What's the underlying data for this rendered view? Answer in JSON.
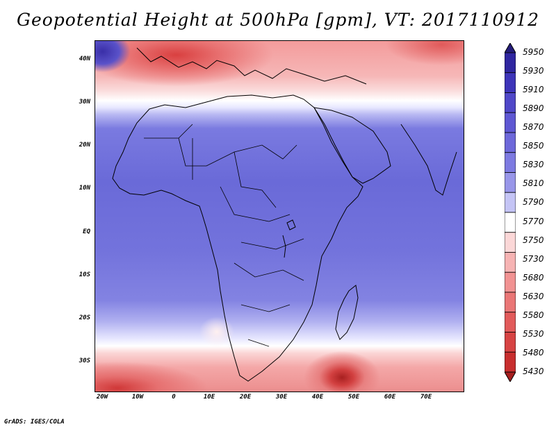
{
  "title": "Geopotential Height at 500hPa [gpm], VT: 2017110912",
  "y_ticks": [
    "40N",
    "30N",
    "20N",
    "10N",
    "EQ",
    "10S",
    "20S",
    "30S"
  ],
  "x_ticks": [
    "20W",
    "10W",
    "0",
    "10E",
    "20E",
    "30E",
    "40E",
    "50E",
    "60E",
    "70E"
  ],
  "colorbar": {
    "labels": [
      "5950",
      "5930",
      "5910",
      "5890",
      "5870",
      "5850",
      "5830",
      "5810",
      "5790",
      "5770",
      "5750",
      "5730",
      "5680",
      "5630",
      "5580",
      "5530",
      "5480",
      "5430"
    ],
    "colors": [
      "#241c7a",
      "#2f26a0",
      "#3d34b9",
      "#4f47c8",
      "#5e57d3",
      "#6d68da",
      "#7d7ae1",
      "#9896e9",
      "#c4c4f5",
      "#ffffff",
      "#fbd7d7",
      "#f6b3b3",
      "#f19292",
      "#ea7676",
      "#e25a5a",
      "#d74343",
      "#c82e2e",
      "#a51e1e"
    ]
  },
  "footer": "GrADS: IGES/COLA"
}
